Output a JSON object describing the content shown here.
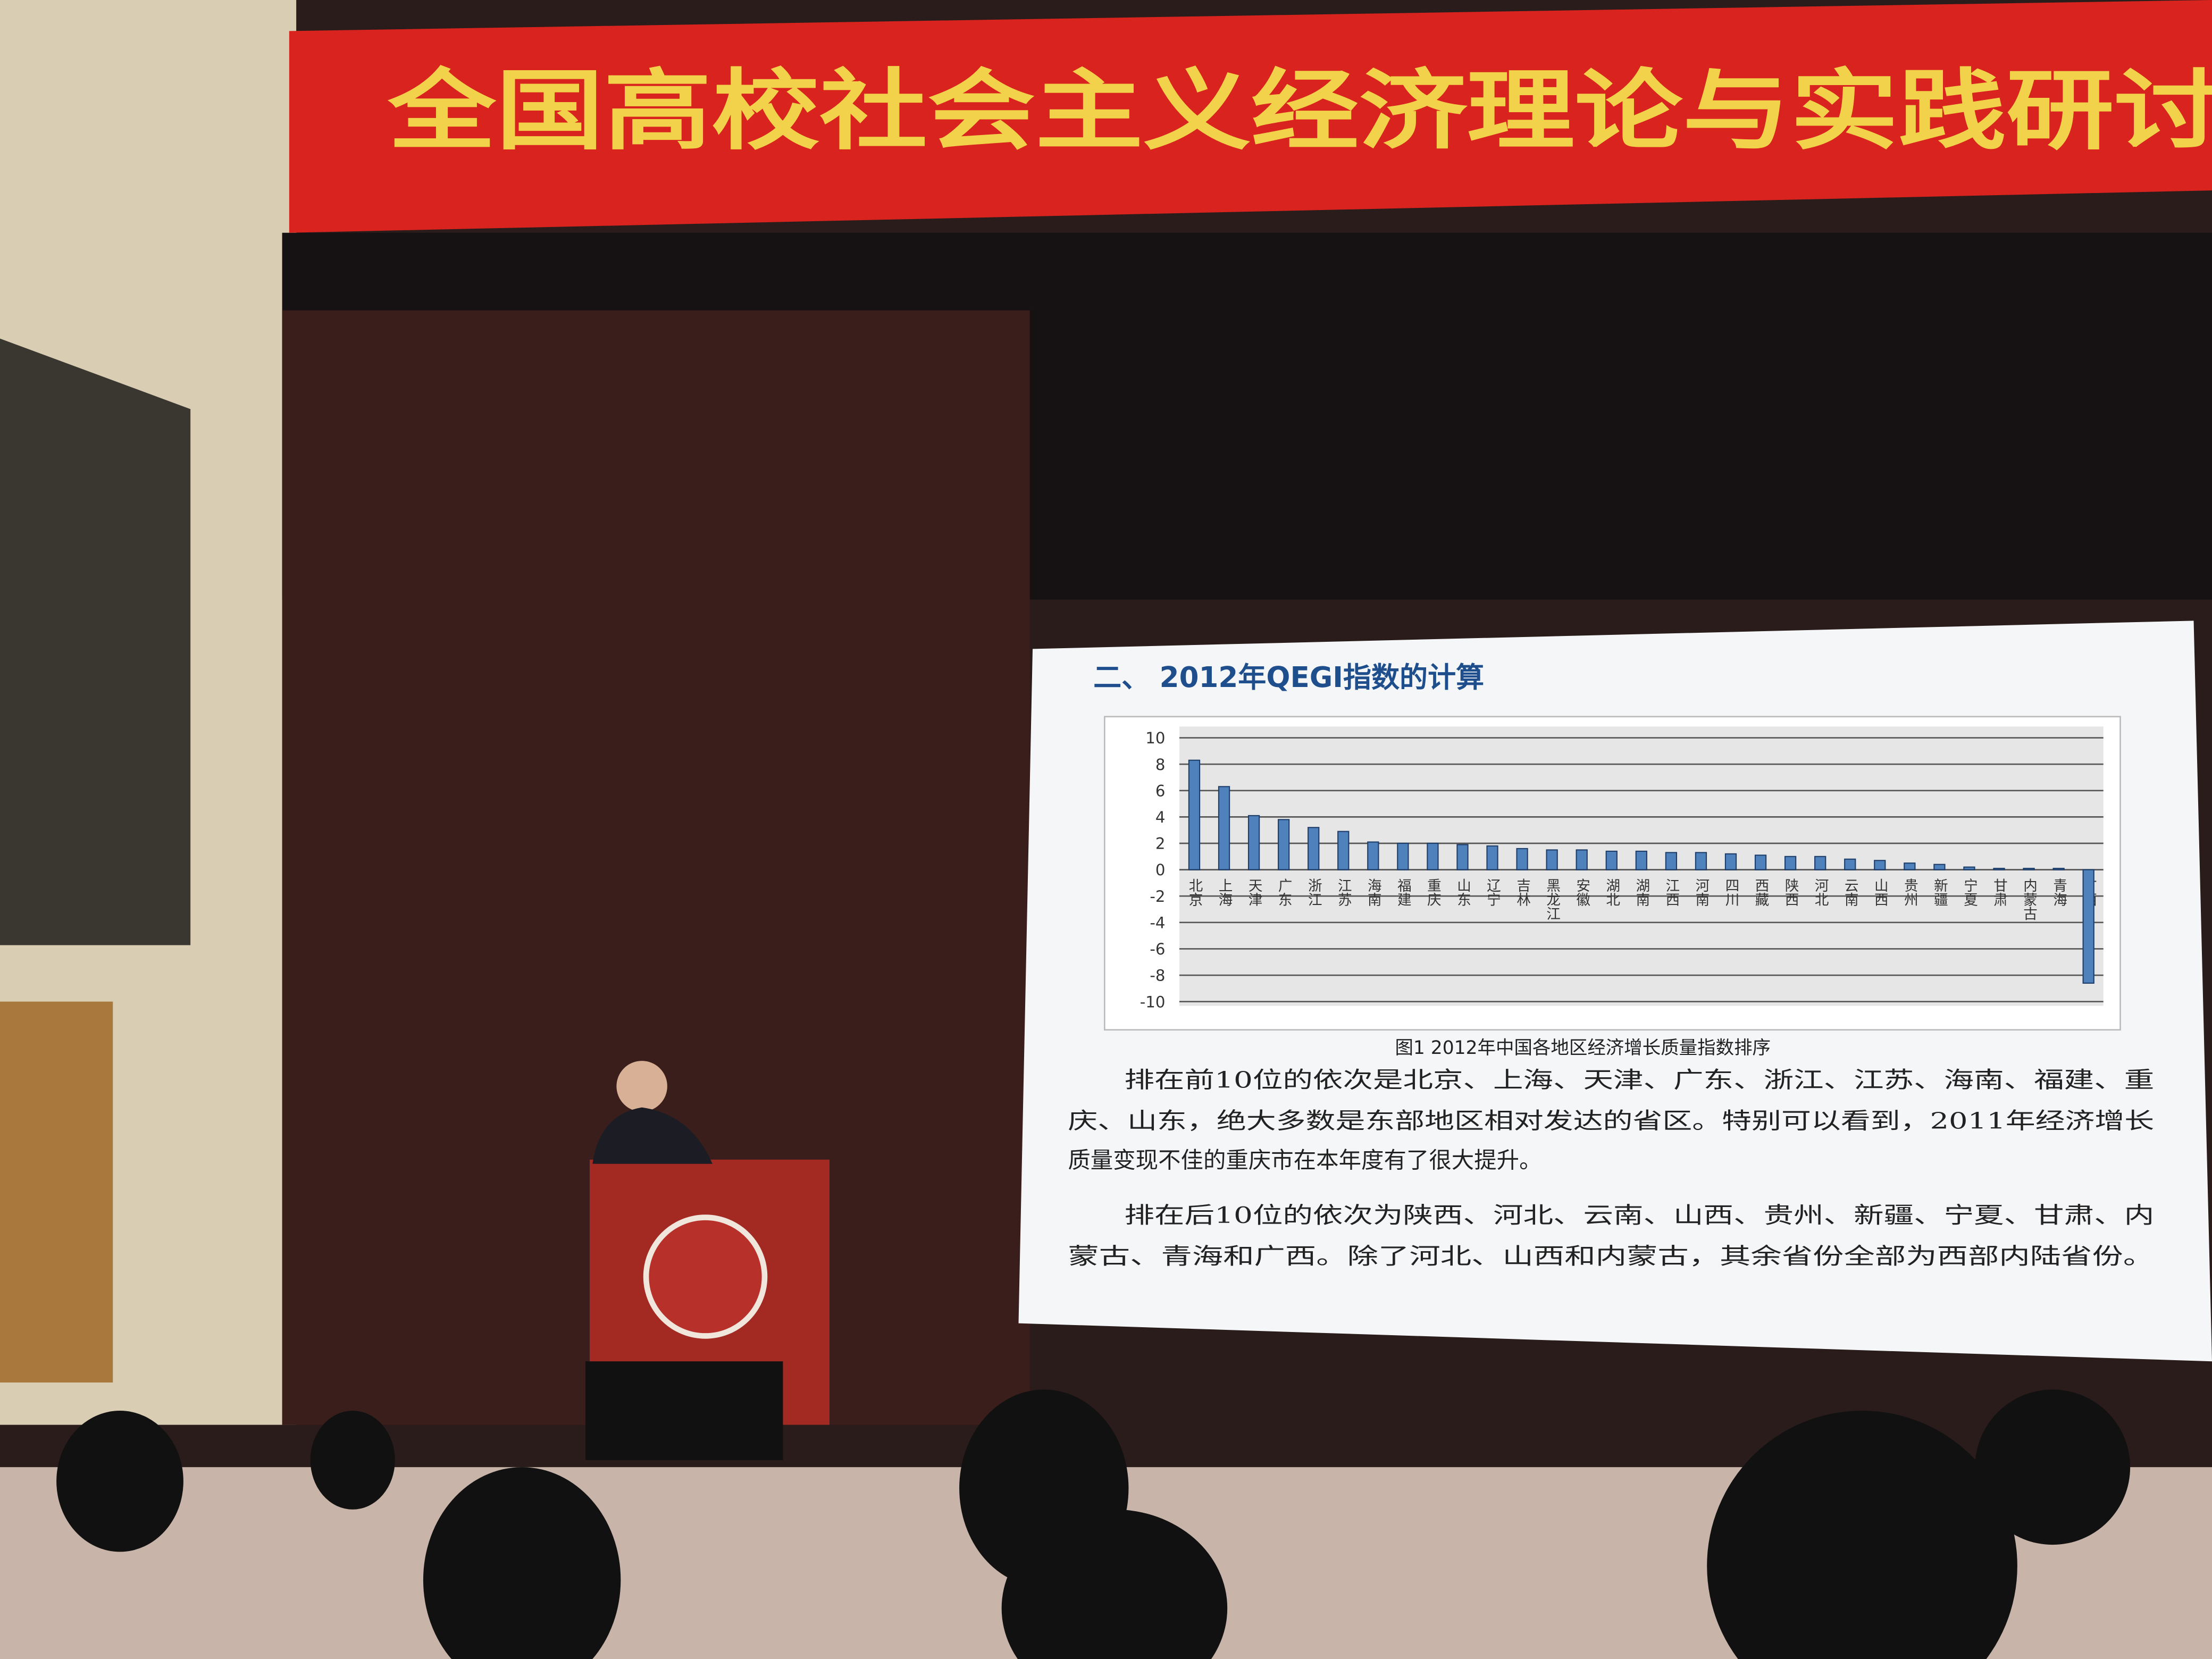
{
  "banner": {
    "text": "全国高校社会主义经济理论与实践研讨"
  },
  "slide": {
    "title": "二、 2012年QEGI指数的计算",
    "caption": "图1  2012年中国各地区经济增长质量指数排序",
    "paragraphs": [
      [
        "排在前10位的依次是北京、上海、天津、广东、浙江、江苏、海南、福建、重",
        "庆、山东，绝大多数是东部地区相对发达的省区。特别可以看到，2011年经济增长",
        "质量变现不佳的重庆市在本年度有了很大提升。"
      ],
      [
        "排在后10位的依次为陕西、河北、云南、山西、贵州、新疆、宁夏、甘肃、内",
        "蒙古、青海和广西。除了河北、山西和内蒙古，其余省份全部为西部内陆省份。"
      ]
    ]
  },
  "chart_data": {
    "type": "bar",
    "categories": [
      "北京",
      "上海",
      "天津",
      "广东",
      "浙江",
      "江苏",
      "海南",
      "福建",
      "重庆",
      "山东",
      "辽宁",
      "吉林",
      "黑龙江",
      "安徽",
      "湖北",
      "湖南",
      "江西",
      "河南",
      "四川",
      "西藏",
      "陕西",
      "河北",
      "云南",
      "山西",
      "贵州",
      "新疆",
      "宁夏",
      "甘肃",
      "内蒙古",
      "青海",
      "广西"
    ],
    "values": [
      8.3,
      6.3,
      4.1,
      3.8,
      3.2,
      2.9,
      2.1,
      2.0,
      2.0,
      1.9,
      1.8,
      1.6,
      1.5,
      1.5,
      1.4,
      1.4,
      1.3,
      1.3,
      1.2,
      1.1,
      1.0,
      1.0,
      0.8,
      0.7,
      0.5,
      0.4,
      0.2,
      0.1,
      0.1,
      0.1,
      -8.6
    ],
    "color": "#4f81bd",
    "ylim": [
      -10,
      10
    ],
    "yticks": [
      10,
      8,
      6,
      4,
      2,
      0,
      -2,
      -4,
      -6,
      -8,
      -10
    ],
    "grid": true
  }
}
